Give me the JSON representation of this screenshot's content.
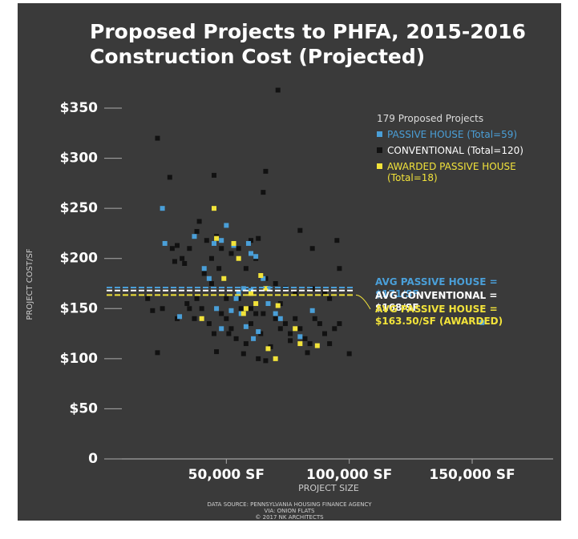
{
  "chart_data": {
    "type": "scatter",
    "title": [
      "Proposed Projects to PHFA, 2015-2016",
      "Construction Cost (Projected)"
    ],
    "xlabel": "PROJECT SIZE",
    "ylabel": "PROJECT COST/SF",
    "legend_title": "179 Proposed Projects",
    "xlim": [
      0,
      180000
    ],
    "ylim": [
      0,
      370
    ],
    "xticks": [
      {
        "value": 50000,
        "label": "50,000 SF"
      },
      {
        "value": 100000,
        "label": "100,000 SF"
      },
      {
        "value": 150000,
        "label": "150,000 SF"
      }
    ],
    "yticks": [
      {
        "value": 0,
        "label": "0"
      },
      {
        "value": 50,
        "label": "$50"
      },
      {
        "value": 100,
        "label": "$100"
      },
      {
        "value": 150,
        "label": "$150"
      },
      {
        "value": 200,
        "label": "$200"
      },
      {
        "value": 250,
        "label": "$250"
      },
      {
        "value": 300,
        "label": "$300"
      },
      {
        "value": 350,
        "label": "$350"
      }
    ],
    "series": [
      {
        "name": "CONVENTIONAL (Total=120)",
        "color": "#111111",
        "x": [
          22000,
          27000,
          45000,
          66000,
          65000,
          71000,
          39000,
          35000,
          30000,
          28000,
          32000,
          29000,
          33000,
          38000,
          42000,
          46000,
          48000,
          52000,
          55000,
          60000,
          63000,
          44000,
          47000,
          41000,
          58000,
          62000,
          66000,
          70000,
          74000,
          78000,
          80000,
          85000,
          95000,
          96000,
          90000,
          92000,
          85000,
          18000,
          20000,
          22000,
          24000,
          35000,
          37000,
          40000,
          43000,
          45000,
          48000,
          50000,
          52000,
          54000,
          56000,
          58000,
          60000,
          62000,
          64000,
          66000,
          68000,
          70000,
          72000,
          74000,
          76000,
          78000,
          80000,
          82000,
          84000,
          86000,
          88000,
          90000,
          92000,
          94000,
          96000,
          100000,
          30000,
          34000,
          50000,
          55000,
          60000,
          65000,
          72000,
          76000,
          83000,
          63000,
          46000,
          44000,
          38000,
          51000,
          57000
        ],
        "values": [
          320,
          281,
          283,
          287,
          266,
          368,
          237,
          210,
          213,
          210,
          200,
          197,
          195,
          227,
          218,
          222,
          210,
          205,
          210,
          218,
          220,
          200,
          190,
          185,
          190,
          200,
          180,
          175,
          170,
          165,
          228,
          210,
          218,
          190,
          165,
          160,
          170,
          160,
          148,
          106,
          150,
          150,
          140,
          150,
          135,
          125,
          145,
          140,
          130,
          120,
          150,
          115,
          135,
          145,
          125,
          98,
          112,
          140,
          130,
          135,
          125,
          140,
          130,
          120,
          115,
          140,
          135,
          125,
          115,
          130,
          135,
          105,
          140,
          155,
          160,
          160,
          150,
          145,
          155,
          118,
          106,
          100,
          107,
          175,
          160,
          125,
          105
        ]
      },
      {
        "name": "PASSIVE HOUSE (Total=59)",
        "color": "#4a9fd8",
        "x": [
          24000,
          25000,
          31000,
          37000,
          41000,
          43000,
          45000,
          48000,
          50000,
          53000,
          55000,
          57000,
          59000,
          60000,
          62000,
          65000,
          67000,
          54000,
          52000,
          46000,
          48000,
          58000,
          61000,
          63000,
          67000,
          70000,
          72000,
          80000,
          85000,
          154000,
          56000,
          60000
        ],
        "values": [
          250,
          215,
          142,
          222,
          190,
          180,
          215,
          218,
          233,
          213,
          165,
          170,
          215,
          205,
          202,
          180,
          170,
          160,
          148,
          150,
          130,
          132,
          120,
          127,
          155,
          145,
          140,
          122,
          148,
          136,
          145,
          168
        ]
      },
      {
        "name": "AWARDED PASSIVE HOUSE (Total=18)",
        "color": "#f2e33a",
        "x": [
          40000,
          45000,
          46000,
          49000,
          53000,
          57000,
          58000,
          60000,
          62000,
          64000,
          66000,
          67000,
          70000,
          71000,
          78000,
          80000,
          87000,
          55000
        ],
        "values": [
          140,
          250,
          220,
          180,
          215,
          145,
          150,
          165,
          155,
          183,
          170,
          110,
          100,
          153,
          130,
          115,
          113,
          200
        ]
      }
    ],
    "averages": [
      {
        "label": "AVG PASSIVE HOUSE = $171/SF",
        "value": 171,
        "color": "#4a9fd8"
      },
      {
        "label": "AVG CONVENTIONAL = $168/SF",
        "value": 168,
        "color": "#ffffff"
      },
      {
        "label": "AVG PASSIVE HOUSE = $163.50/SF (AWARDED)",
        "value": 163.5,
        "color": "#f2e33a"
      }
    ]
  },
  "footer": [
    "DATA SOURCE: PENNSYLVANIA HOUSING FINANCE AGENCY",
    "VIA: ONION FLATS",
    "© 2017 NK ARCHITECTS"
  ]
}
